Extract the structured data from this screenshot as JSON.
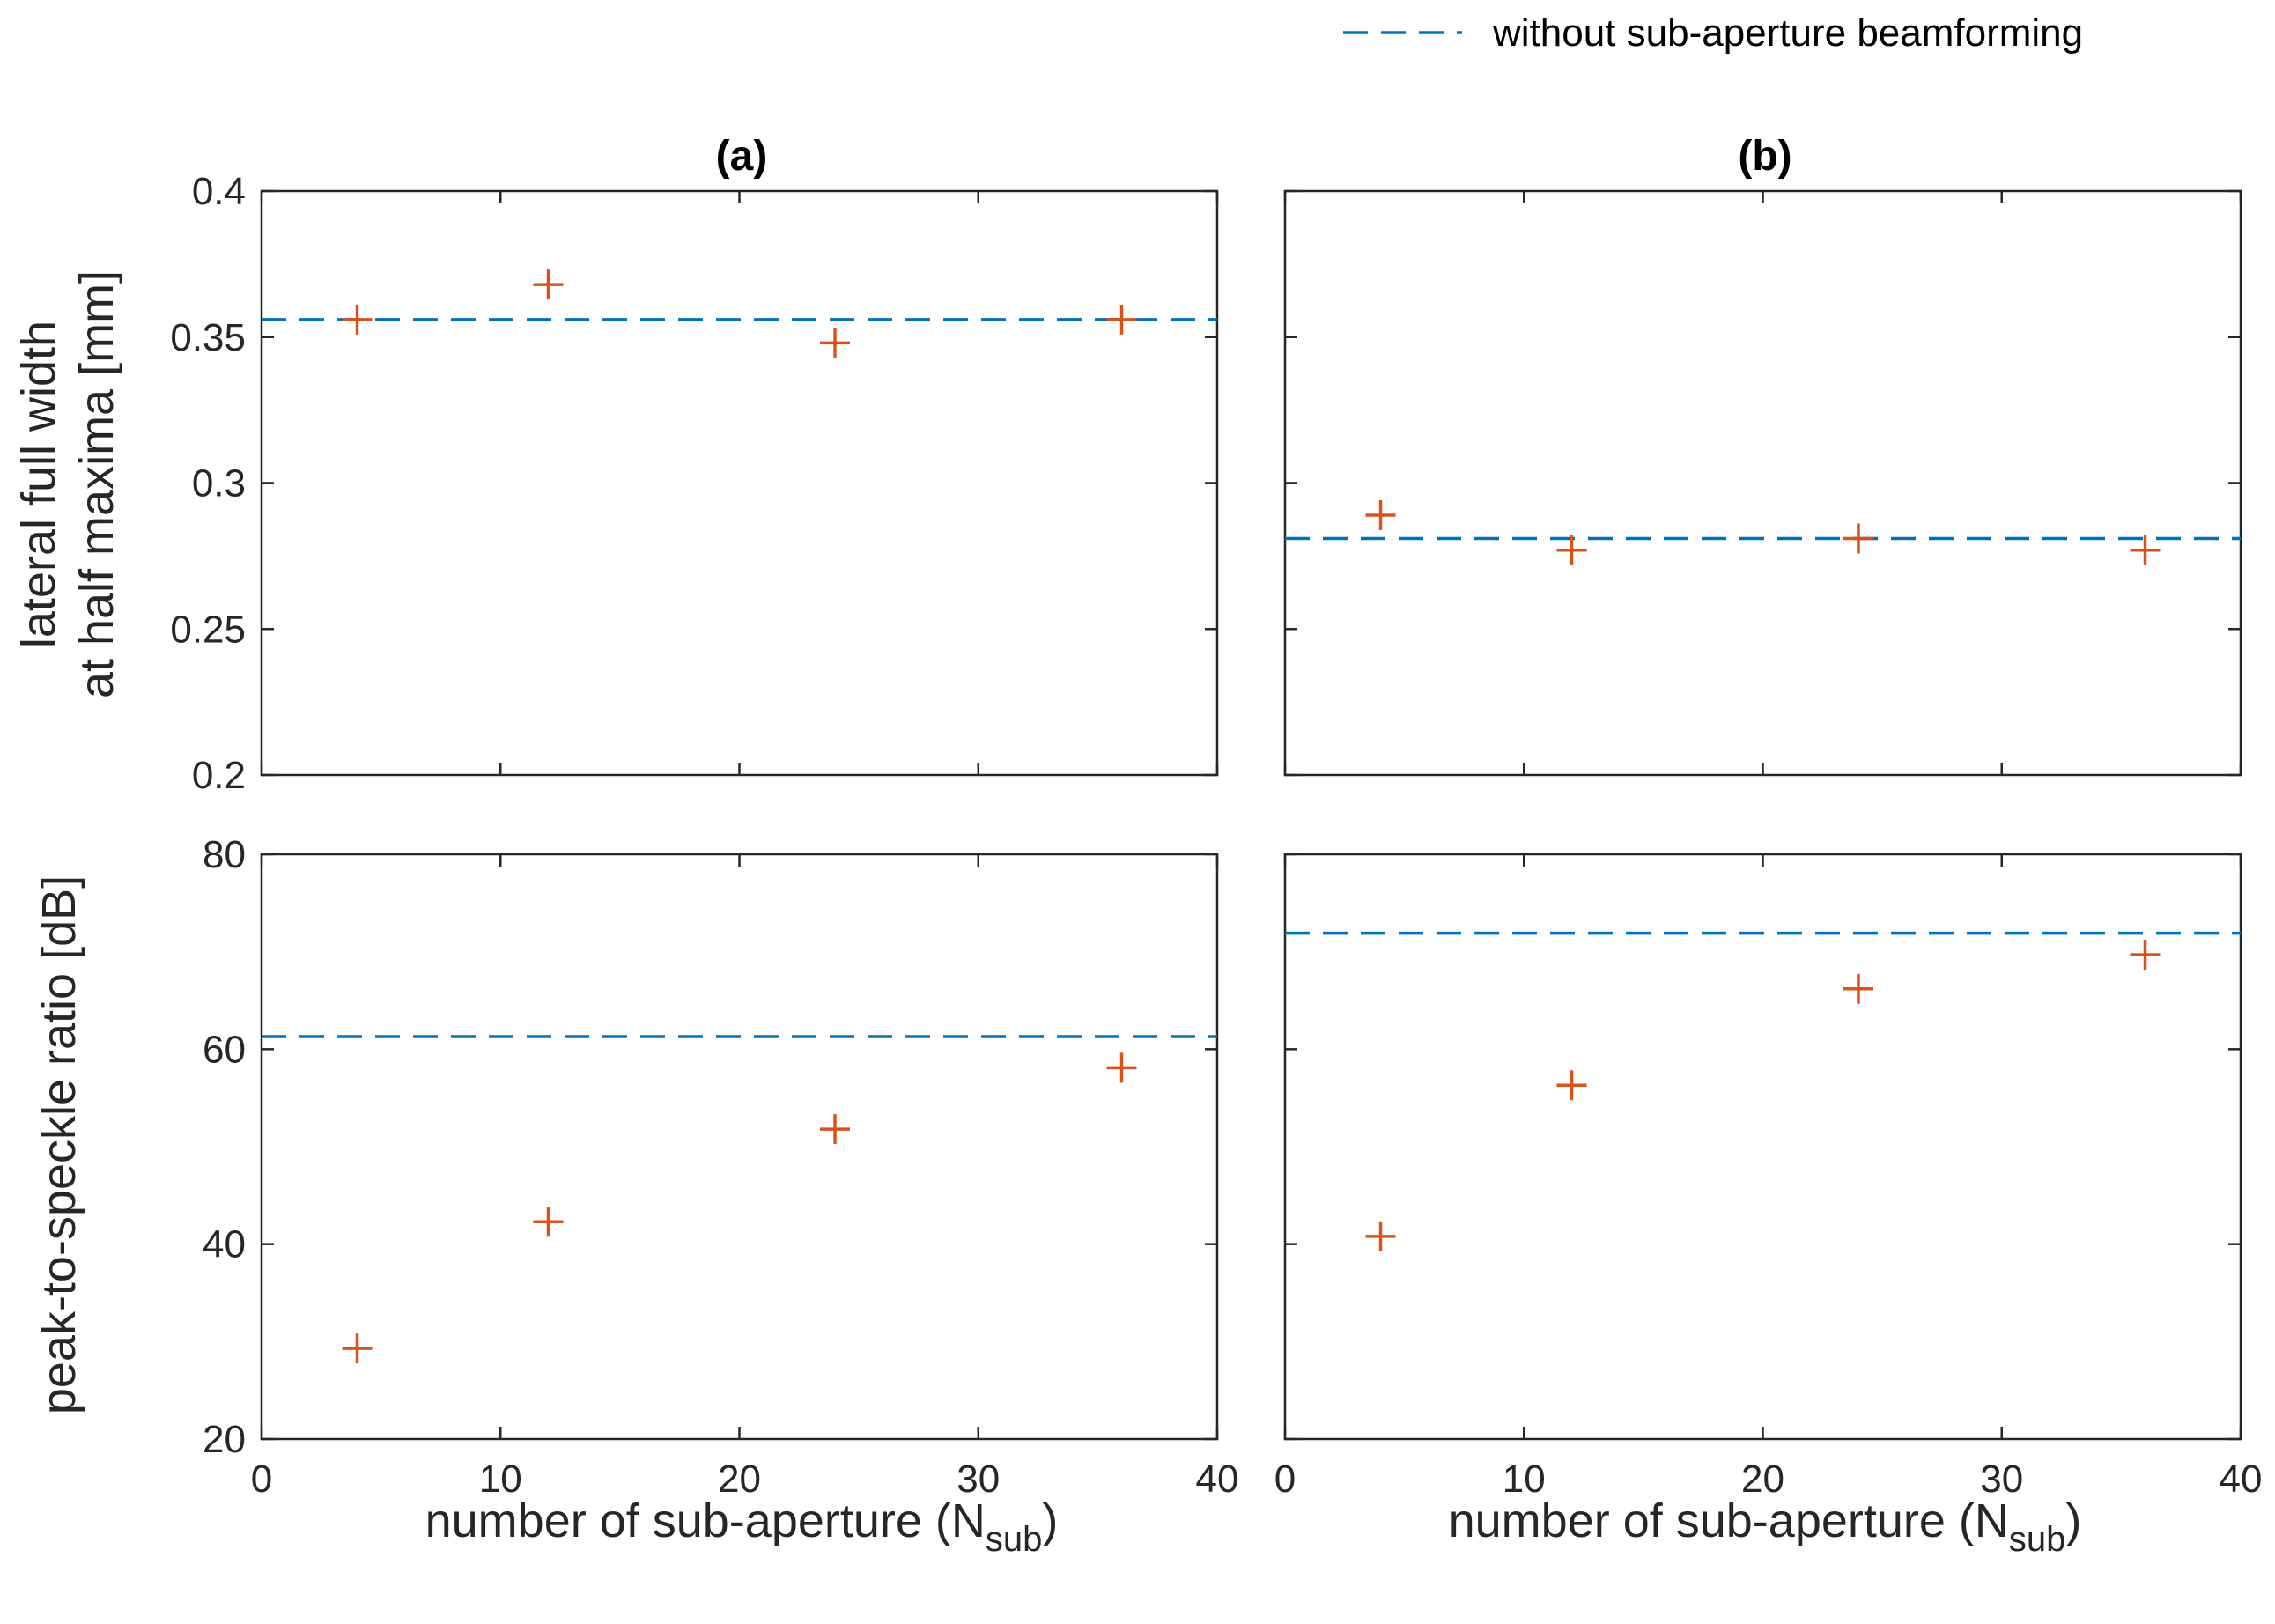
{
  "chart_data": {
    "type": "scatter",
    "legend": {
      "position": "top-right",
      "entries": [
        {
          "label": "without sub-aperture beamforming",
          "style": "dashed-line",
          "color": "#0072BD"
        }
      ]
    },
    "colors": {
      "marker": "#D95319",
      "reference_line": "#0072BD",
      "axes": "#262626"
    },
    "xlabel_main": "number of sub-aperture (N",
    "xlabel_sub": "sub",
    "xlabel_close": ")",
    "ylabel_top_lines": [
      "lateral full width",
      "at half maxima [mm]"
    ],
    "ylabel_bottom": "peak-to-speckle ratio [dB]",
    "xlim": [
      0,
      40
    ],
    "xticks": [
      0,
      10,
      20,
      30,
      40
    ],
    "column_titles": [
      "(a)",
      "(b)"
    ],
    "panels": [
      {
        "id": "a-top",
        "ylim": [
          0.2,
          0.4
        ],
        "yticks": [
          0.2,
          0.25,
          0.3,
          0.35,
          0.4
        ],
        "ytick_labels": [
          "0.2",
          "0.25",
          "0.3",
          "0.35",
          "0.4"
        ],
        "x": [
          4,
          12,
          24,
          36
        ],
        "y": [
          0.356,
          0.368,
          0.348,
          0.356
        ],
        "reference": 0.356
      },
      {
        "id": "b-top",
        "ylim": [
          0.2,
          0.4
        ],
        "yticks": [
          0.2,
          0.25,
          0.3,
          0.35,
          0.4
        ],
        "ytick_labels": [],
        "x": [
          4,
          12,
          24,
          36
        ],
        "y": [
          0.289,
          0.277,
          0.281,
          0.277
        ],
        "reference": 0.281
      },
      {
        "id": "a-bottom",
        "ylim": [
          20,
          80
        ],
        "yticks": [
          20,
          40,
          60,
          80
        ],
        "ytick_labels": [
          "20",
          "40",
          "60",
          "80"
        ],
        "x": [
          4,
          12,
          24,
          36
        ],
        "y": [
          29.3,
          42.3,
          51.8,
          58.1
        ],
        "reference": 61.3
      },
      {
        "id": "b-bottom",
        "ylim": [
          20,
          80
        ],
        "yticks": [
          20,
          40,
          60,
          80
        ],
        "ytick_labels": [],
        "x": [
          4,
          12,
          24,
          36
        ],
        "y": [
          40.8,
          56.3,
          66.2,
          69.7
        ],
        "reference": 71.9
      }
    ]
  }
}
